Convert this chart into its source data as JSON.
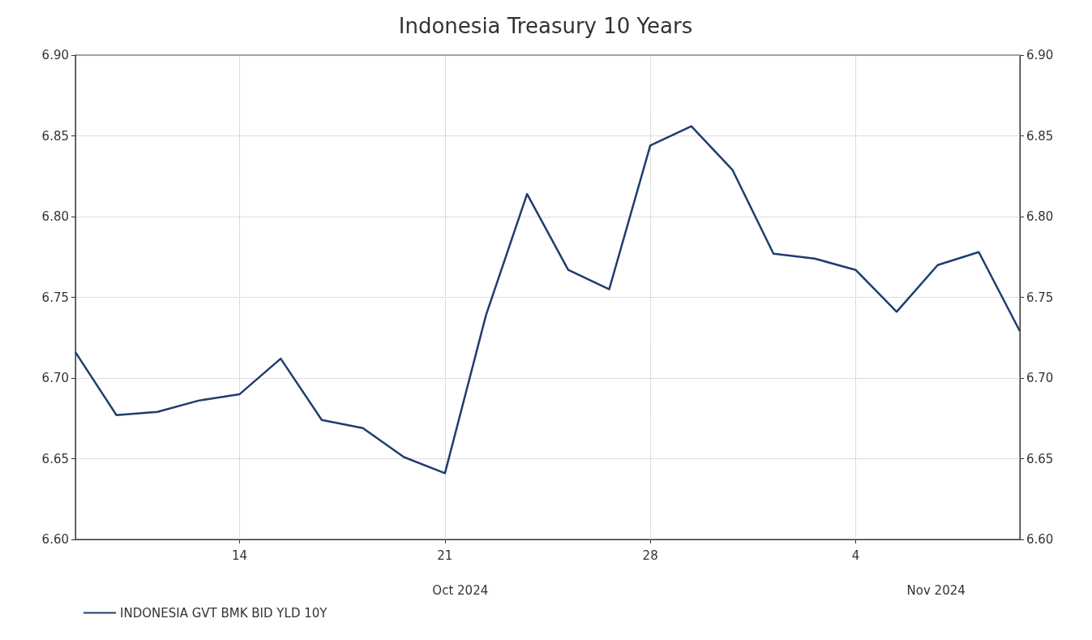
{
  "chart_data": {
    "type": "line",
    "title": "Indonesia Treasury 10 Years",
    "categories": [
      null,
      null,
      null,
      null,
      "14",
      null,
      null,
      null,
      null,
      "21",
      null,
      null,
      null,
      null,
      "28",
      null,
      null,
      null,
      null,
      "4",
      null,
      null,
      null,
      null
    ],
    "series": [
      {
        "name": "INDONESIA GVT BMK BID YLD 10Y",
        "color": "#1f3d6e",
        "values": [
          6.716,
          6.677,
          6.679,
          6.686,
          6.69,
          6.712,
          6.674,
          6.669,
          6.651,
          6.641,
          6.739,
          6.814,
          6.767,
          6.755,
          6.844,
          6.856,
          6.829,
          6.777,
          6.774,
          6.767,
          6.741,
          6.77,
          6.778,
          6.729
        ]
      }
    ],
    "ylim": [
      6.6,
      6.9
    ],
    "yticks": [
      {
        "value": 6.6,
        "label": "6.60"
      },
      {
        "value": 6.65,
        "label": "6.65"
      },
      {
        "value": 6.7,
        "label": "6.70"
      },
      {
        "value": 6.75,
        "label": "6.75"
      },
      {
        "value": 6.8,
        "label": "6.80"
      },
      {
        "value": 6.85,
        "label": "6.85"
      },
      {
        "value": 6.9,
        "label": "6.90"
      }
    ],
    "y2lim": [
      6.6,
      6.9
    ],
    "y2ticks": [
      {
        "value": 6.6,
        "label": "6.60"
      },
      {
        "value": 6.65,
        "label": "6.65"
      },
      {
        "value": 6.7,
        "label": "6.70"
      },
      {
        "value": 6.75,
        "label": "6.75"
      },
      {
        "value": 6.8,
        "label": "6.80"
      },
      {
        "value": 6.85,
        "label": "6.85"
      },
      {
        "value": 6.9,
        "label": "6.90"
      }
    ],
    "annotations": [
      "Oct 2024",
      "Nov 2024"
    ],
    "grid": true,
    "legend": "bottom left",
    "marker": "none",
    "line_style": "solid"
  }
}
